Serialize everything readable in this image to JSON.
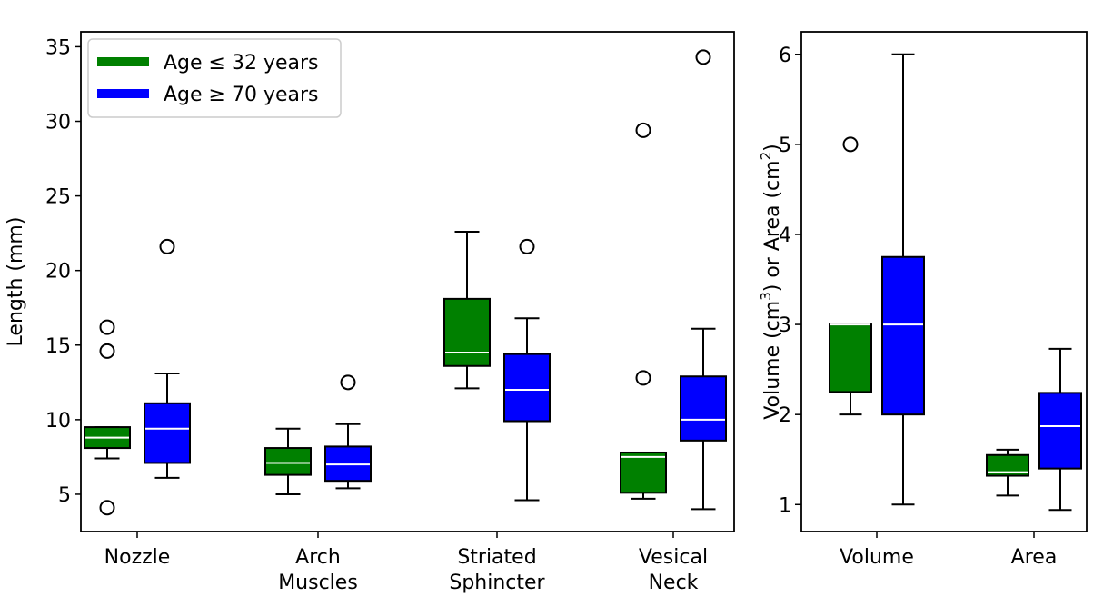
{
  "colors": {
    "young": "#008000",
    "old": "#0000ff",
    "median": "#ffffff",
    "whisker": "#000000"
  },
  "legend": [
    {
      "label": "Age ≤ 32 years",
      "color": "#008000"
    },
    {
      "label": "Age ≥ 70 years",
      "color": "#0000ff"
    }
  ],
  "chart_data": [
    {
      "type": "box",
      "ylabel": "Length (mm)",
      "ylim": [
        2.5,
        36
      ],
      "yticks": [
        5,
        10,
        15,
        20,
        25,
        30,
        35
      ],
      "legend_position": "top-left",
      "categories": [
        {
          "lines": [
            "Nozzle"
          ]
        },
        {
          "lines": [
            "Arch",
            "Muscles"
          ]
        },
        {
          "lines": [
            "Striated",
            "Sphincter"
          ]
        },
        {
          "lines": [
            "Vesical",
            "Neck"
          ]
        }
      ],
      "series": [
        {
          "name": "Age ≤ 32 years",
          "color": "#008000",
          "boxes": [
            {
              "whislo": 7.4,
              "q1": 8.1,
              "med": 8.8,
              "q3": 9.5,
              "whishi": 9.5,
              "fliers": [
                16.2,
                14.6,
                4.1
              ]
            },
            {
              "whislo": 5.0,
              "q1": 6.3,
              "med": 7.1,
              "q3": 8.1,
              "whishi": 9.4,
              "fliers": []
            },
            {
              "whislo": 12.1,
              "q1": 13.6,
              "med": 14.5,
              "q3": 18.1,
              "whishi": 22.6,
              "fliers": []
            },
            {
              "whislo": 4.7,
              "q1": 5.1,
              "med": 7.5,
              "q3": 7.8,
              "whishi": 7.8,
              "fliers": [
                29.4,
                12.8
              ]
            }
          ]
        },
        {
          "name": "Age ≥ 70 years",
          "color": "#0000ff",
          "boxes": [
            {
              "whislo": 6.1,
              "q1": 7.1,
              "med": 9.4,
              "q3": 11.1,
              "whishi": 13.1,
              "fliers": [
                21.6
              ]
            },
            {
              "whislo": 5.4,
              "q1": 5.9,
              "med": 7.0,
              "q3": 8.2,
              "whishi": 9.7,
              "fliers": [
                12.5
              ]
            },
            {
              "whislo": 4.6,
              "q1": 9.9,
              "med": 12.0,
              "q3": 14.4,
              "whishi": 16.8,
              "fliers": [
                21.6
              ]
            },
            {
              "whislo": 4.0,
              "q1": 8.6,
              "med": 10.0,
              "q3": 12.9,
              "whishi": 16.1,
              "fliers": [
                34.3
              ]
            }
          ]
        }
      ]
    },
    {
      "type": "box",
      "ylabel_parts": [
        "Volume (cm",
        "3",
        ") or Area (cm",
        "2",
        ")"
      ],
      "ylim": [
        0.7,
        6.25
      ],
      "yticks": [
        1,
        2,
        3,
        4,
        5,
        6
      ],
      "categories": [
        {
          "lines": [
            "Volume"
          ]
        },
        {
          "lines": [
            "Area"
          ]
        }
      ],
      "series": [
        {
          "name": "Age ≤ 32 years",
          "color": "#008000",
          "boxes": [
            {
              "whislo": 2.0,
              "q1": 2.25,
              "med": 3.0,
              "q3": 3.0,
              "whishi": 3.0,
              "fliers": [
                5.0
              ]
            },
            {
              "whislo": 1.1,
              "q1": 1.32,
              "med": 1.36,
              "q3": 1.55,
              "whishi": 1.61,
              "fliers": []
            }
          ]
        },
        {
          "name": "Age ≥ 70 years",
          "color": "#0000ff",
          "boxes": [
            {
              "whislo": 1.0,
              "q1": 2.0,
              "med": 3.0,
              "q3": 3.75,
              "whishi": 6.0,
              "fliers": []
            },
            {
              "whislo": 0.94,
              "q1": 1.4,
              "med": 1.87,
              "q3": 2.24,
              "whishi": 2.73,
              "fliers": []
            }
          ]
        }
      ]
    }
  ]
}
